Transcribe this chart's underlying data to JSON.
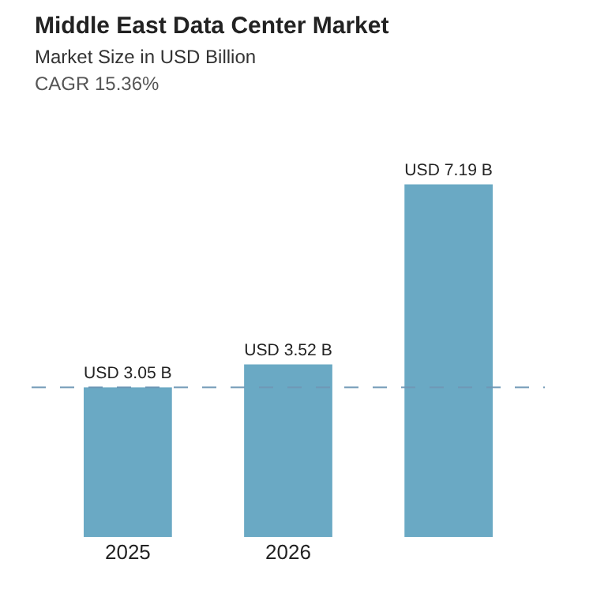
{
  "chart_data": {
    "type": "bar",
    "title": "Middle East Data Center Market",
    "subtitle": "Market Size in USD Billion",
    "annotations": [
      "CAGR 15.36%"
    ],
    "categories": [
      "2025",
      "2026",
      null
    ],
    "values": [
      3.05,
      3.52,
      7.19
    ],
    "value_labels": [
      "USD 3.05 B",
      "USD 3.52 B",
      "USD 7.19 B"
    ],
    "color": "#6aa9c4",
    "ref_lines": [
      {
        "axis": "y",
        "value": 3.05,
        "color": "#6f97b5",
        "line_style": "dashed"
      }
    ]
  }
}
